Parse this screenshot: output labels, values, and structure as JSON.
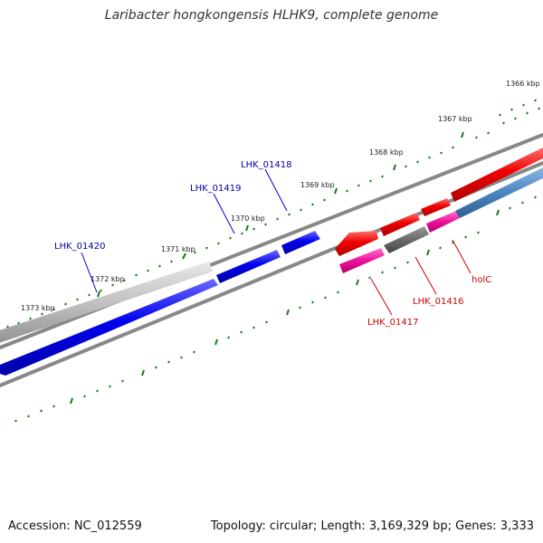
{
  "title": "Laribacter hongkongensis HLHK9, complete genome",
  "footer": {
    "accession": "Accession: NC_012559",
    "topology": "Topology: circular; Length: 3,169,329 bp; Genes: 3,333"
  },
  "colors": {
    "backbone": "#808080",
    "forward_gene": "#0000ee",
    "forward_pseudo": "#c0c0c0",
    "reverse_gene": "#ee0000",
    "reverse_pseudo": "#707070",
    "magenta_gene": "#ee1199",
    "steelblue_gene": "#4a86c0",
    "tick": "#1a7a1a",
    "forward_label": "#0000aa",
    "reverse_label": "#cc0000"
  },
  "scale_labels": [
    "1366 kbp",
    "1367 kbp",
    "1368 kbp",
    "1369 kbp",
    "1370 kbp",
    "1371 kbp",
    "1372 kbp",
    "1373 kbp"
  ],
  "gene_labels": {
    "forward": [
      "LHK_01420",
      "LHK_01419",
      "LHK_01418"
    ],
    "reverse": [
      "LHK_01417",
      "LHK_01416",
      "holC"
    ]
  }
}
